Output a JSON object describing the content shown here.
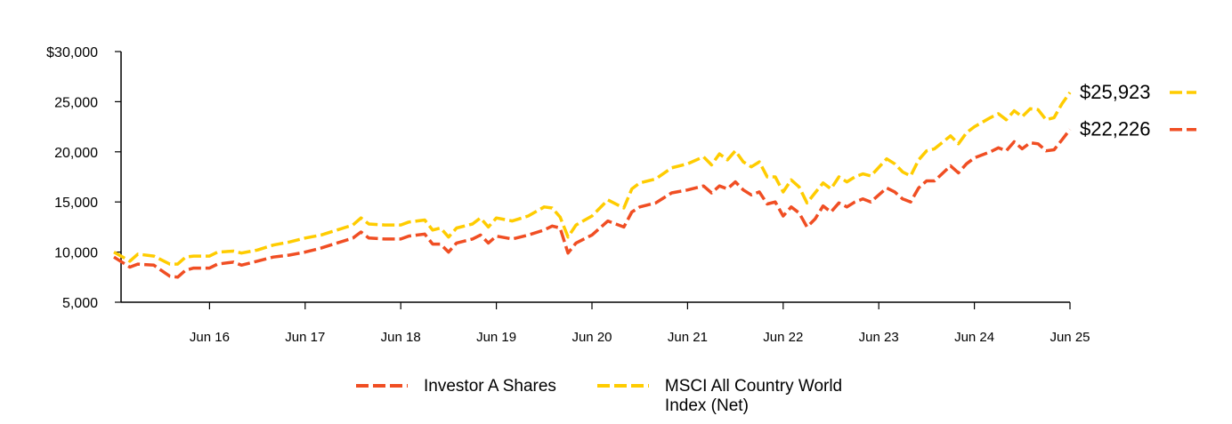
{
  "chart_data": {
    "type": "line",
    "title": "",
    "xlabel": "",
    "ylabel": "",
    "ylim": [
      5000,
      30000
    ],
    "y_ticks": [
      {
        "value": 5000,
        "label": "5,000"
      },
      {
        "value": 10000,
        "label": "10,000"
      },
      {
        "value": 15000,
        "label": "15,000"
      },
      {
        "value": 20000,
        "label": "20,000"
      },
      {
        "value": 25000,
        "label": "25,000"
      },
      {
        "value": 30000,
        "label": "$30,000"
      }
    ],
    "x_range": [
      "2015-06",
      "2025-06"
    ],
    "x_ticks": [
      {
        "date": "2016-06",
        "label": "Jun 16"
      },
      {
        "date": "2017-06",
        "label": "Jun 17"
      },
      {
        "date": "2018-06",
        "label": "Jun 18"
      },
      {
        "date": "2019-06",
        "label": "Jun 19"
      },
      {
        "date": "2020-06",
        "label": "Jun 20"
      },
      {
        "date": "2021-06",
        "label": "Jun 21"
      },
      {
        "date": "2022-06",
        "label": "Jun 22"
      },
      {
        "date": "2023-06",
        "label": "Jun 23"
      },
      {
        "date": "2024-06",
        "label": "Jun 24"
      },
      {
        "date": "2025-06",
        "label": "Jun 25"
      }
    ],
    "grid": false,
    "legend_position": "bottom-center",
    "series": [
      {
        "name": "Investor A Shares",
        "color": "#F04E23",
        "end_label": "$22,226",
        "points": [
          [
            "2015-06",
            9500
          ],
          [
            "2015-08",
            8500
          ],
          [
            "2015-09",
            8800
          ],
          [
            "2015-11",
            8700
          ],
          [
            "2016-01",
            7600
          ],
          [
            "2016-02",
            7500
          ],
          [
            "2016-03",
            8200
          ],
          [
            "2016-04",
            8400
          ],
          [
            "2016-06",
            8400
          ],
          [
            "2016-07",
            8800
          ],
          [
            "2016-09",
            9000
          ],
          [
            "2016-10",
            8700
          ],
          [
            "2016-12",
            9100
          ],
          [
            "2017-02",
            9500
          ],
          [
            "2017-04",
            9700
          ],
          [
            "2017-06",
            10000
          ],
          [
            "2017-08",
            10400
          ],
          [
            "2017-10",
            10900
          ],
          [
            "2017-12",
            11400
          ],
          [
            "2018-01",
            12000
          ],
          [
            "2018-02",
            11400
          ],
          [
            "2018-04",
            11300
          ],
          [
            "2018-06",
            11300
          ],
          [
            "2018-07",
            11600
          ],
          [
            "2018-09",
            11800
          ],
          [
            "2018-10",
            10800
          ],
          [
            "2018-11",
            10800
          ],
          [
            "2018-12",
            10000
          ],
          [
            "2019-01",
            10900
          ],
          [
            "2019-03",
            11300
          ],
          [
            "2019-04",
            11700
          ],
          [
            "2019-05",
            10900
          ],
          [
            "2019-06",
            11600
          ],
          [
            "2019-08",
            11300
          ],
          [
            "2019-10",
            11700
          ],
          [
            "2019-12",
            12200
          ],
          [
            "2020-01",
            12600
          ],
          [
            "2020-02",
            12400
          ],
          [
            "2020-03",
            9900
          ],
          [
            "2020-04",
            10900
          ],
          [
            "2020-06",
            11700
          ],
          [
            "2020-08",
            13100
          ],
          [
            "2020-10",
            12500
          ],
          [
            "2020-11",
            14000
          ],
          [
            "2020-12",
            14500
          ],
          [
            "2021-02",
            14900
          ],
          [
            "2021-04",
            15900
          ],
          [
            "2021-06",
            16200
          ],
          [
            "2021-08",
            16600
          ],
          [
            "2021-09",
            15900
          ],
          [
            "2021-10",
            16600
          ],
          [
            "2021-11",
            16300
          ],
          [
            "2021-12",
            17000
          ],
          [
            "2022-01",
            16200
          ],
          [
            "2022-02",
            15700
          ],
          [
            "2022-03",
            16000
          ],
          [
            "2022-04",
            14800
          ],
          [
            "2022-05",
            15000
          ],
          [
            "2022-06",
            13600
          ],
          [
            "2022-07",
            14500
          ],
          [
            "2022-08",
            13900
          ],
          [
            "2022-09",
            12500
          ],
          [
            "2022-10",
            13300
          ],
          [
            "2022-11",
            14600
          ],
          [
            "2022-12",
            14000
          ],
          [
            "2023-01",
            14900
          ],
          [
            "2023-02",
            14500
          ],
          [
            "2023-03",
            15000
          ],
          [
            "2023-04",
            15300
          ],
          [
            "2023-05",
            15000
          ],
          [
            "2023-07",
            16400
          ],
          [
            "2023-08",
            16000
          ],
          [
            "2023-09",
            15300
          ],
          [
            "2023-10",
            15000
          ],
          [
            "2023-11",
            16400
          ],
          [
            "2023-12",
            17100
          ],
          [
            "2024-01",
            17100
          ],
          [
            "2024-03",
            18600
          ],
          [
            "2024-04",
            17900
          ],
          [
            "2024-05",
            18800
          ],
          [
            "2024-06",
            19400
          ],
          [
            "2024-08",
            20000
          ],
          [
            "2024-09",
            20400
          ],
          [
            "2024-10",
            20100
          ],
          [
            "2024-11",
            21000
          ],
          [
            "2024-12",
            20300
          ],
          [
            "2025-01",
            20900
          ],
          [
            "2025-02",
            20800
          ],
          [
            "2025-03",
            20100
          ],
          [
            "2025-04",
            20200
          ],
          [
            "2025-05",
            21200
          ],
          [
            "2025-06",
            22226
          ]
        ]
      },
      {
        "name": "MSCI All Country World Index (Net)",
        "color": "#FFCC00",
        "end_label": "$25,923",
        "points": [
          [
            "2015-06",
            10000
          ],
          [
            "2015-08",
            9100
          ],
          [
            "2015-09",
            9800
          ],
          [
            "2015-11",
            9600
          ],
          [
            "2016-01",
            8800
          ],
          [
            "2016-02",
            8800
          ],
          [
            "2016-03",
            9500
          ],
          [
            "2016-04",
            9600
          ],
          [
            "2016-06",
            9600
          ],
          [
            "2016-07",
            10000
          ],
          [
            "2016-09",
            10100
          ],
          [
            "2016-10",
            9900
          ],
          [
            "2016-12",
            10200
          ],
          [
            "2017-02",
            10700
          ],
          [
            "2017-04",
            11000
          ],
          [
            "2017-06",
            11400
          ],
          [
            "2017-08",
            11700
          ],
          [
            "2017-10",
            12200
          ],
          [
            "2017-12",
            12700
          ],
          [
            "2018-01",
            13400
          ],
          [
            "2018-02",
            12800
          ],
          [
            "2018-04",
            12700
          ],
          [
            "2018-06",
            12700
          ],
          [
            "2018-07",
            13000
          ],
          [
            "2018-09",
            13200
          ],
          [
            "2018-10",
            12200
          ],
          [
            "2018-11",
            12400
          ],
          [
            "2018-12",
            11500
          ],
          [
            "2019-01",
            12400
          ],
          [
            "2019-03",
            12800
          ],
          [
            "2019-04",
            13400
          ],
          [
            "2019-05",
            12500
          ],
          [
            "2019-06",
            13400
          ],
          [
            "2019-08",
            13100
          ],
          [
            "2019-10",
            13600
          ],
          [
            "2019-12",
            14500
          ],
          [
            "2020-01",
            14400
          ],
          [
            "2020-02",
            13500
          ],
          [
            "2020-03",
            11500
          ],
          [
            "2020-04",
            12700
          ],
          [
            "2020-06",
            13600
          ],
          [
            "2020-08",
            15200
          ],
          [
            "2020-10",
            14400
          ],
          [
            "2020-11",
            16300
          ],
          [
            "2020-12",
            16900
          ],
          [
            "2021-02",
            17300
          ],
          [
            "2021-04",
            18400
          ],
          [
            "2021-06",
            18800
          ],
          [
            "2021-08",
            19500
          ],
          [
            "2021-09",
            18700
          ],
          [
            "2021-10",
            19800
          ],
          [
            "2021-11",
            19200
          ],
          [
            "2021-12",
            20100
          ],
          [
            "2022-01",
            19000
          ],
          [
            "2022-02",
            18500
          ],
          [
            "2022-03",
            19000
          ],
          [
            "2022-04",
            17500
          ],
          [
            "2022-05",
            17500
          ],
          [
            "2022-06",
            16000
          ],
          [
            "2022-07",
            17200
          ],
          [
            "2022-08",
            16500
          ],
          [
            "2022-09",
            14900
          ],
          [
            "2022-10",
            15900
          ],
          [
            "2022-11",
            16900
          ],
          [
            "2022-12",
            16300
          ],
          [
            "2023-01",
            17500
          ],
          [
            "2023-02",
            17000
          ],
          [
            "2023-03",
            17500
          ],
          [
            "2023-04",
            17800
          ],
          [
            "2023-05",
            17600
          ],
          [
            "2023-07",
            19300
          ],
          [
            "2023-08",
            18800
          ],
          [
            "2023-09",
            18000
          ],
          [
            "2023-10",
            17600
          ],
          [
            "2023-11",
            19200
          ],
          [
            "2023-12",
            20100
          ],
          [
            "2024-01",
            20300
          ],
          [
            "2024-03",
            21600
          ],
          [
            "2024-04",
            20800
          ],
          [
            "2024-05",
            21900
          ],
          [
            "2024-06",
            22500
          ],
          [
            "2024-08",
            23400
          ],
          [
            "2024-09",
            23800
          ],
          [
            "2024-10",
            23200
          ],
          [
            "2024-11",
            24100
          ],
          [
            "2024-12",
            23500
          ],
          [
            "2025-01",
            24300
          ],
          [
            "2025-02",
            24200
          ],
          [
            "2025-03",
            23200
          ],
          [
            "2025-04",
            23400
          ],
          [
            "2025-05",
            24800
          ],
          [
            "2025-06",
            25923
          ]
        ]
      }
    ]
  },
  "legend": {
    "items": [
      {
        "label": "Investor A Shares",
        "color": "#F04E23"
      },
      {
        "label": "MSCI All Country World",
        "label2": "Index (Net)",
        "color": "#FFCC00"
      }
    ]
  }
}
